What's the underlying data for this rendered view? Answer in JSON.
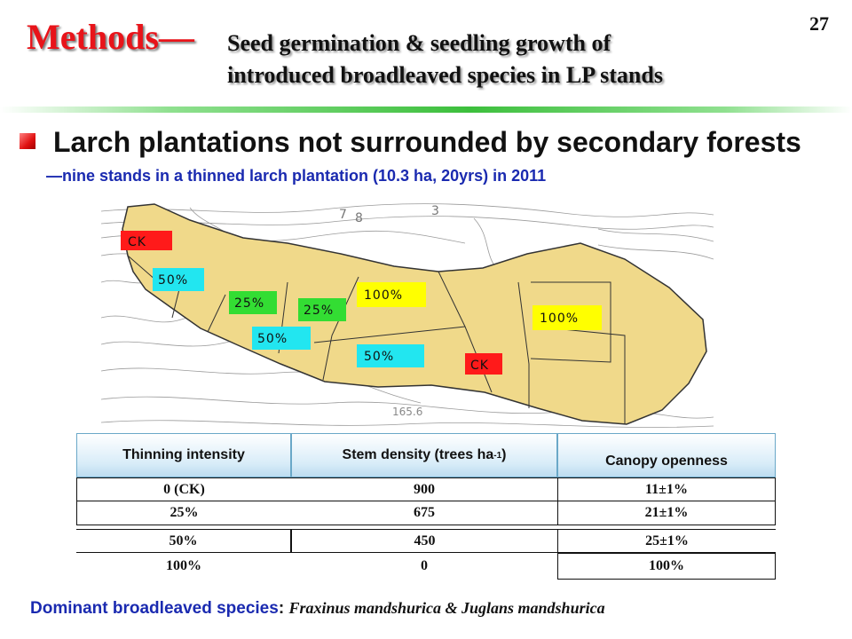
{
  "slide": {
    "page_number": "27",
    "title": "Methods—",
    "subtitle_line1": "Seed germination & seedling growth of",
    "subtitle_line2": "introduced broadleaved species in LP stands",
    "heading": "Larch plantations not surrounded by secondary forests",
    "subheading": "—nine stands in a thinned larch plantation (10.3 ha, 20yrs) in 2011"
  },
  "map": {
    "contour_labels": [
      "7",
      "8",
      "3",
      "165.6"
    ],
    "stands": [
      {
        "label": "CK",
        "color": "#ff1a1a"
      },
      {
        "label": "50%",
        "color": "#22e6f0"
      },
      {
        "label": "25%",
        "color": "#33dd33"
      },
      {
        "label": "25%",
        "color": "#33dd33"
      },
      {
        "label": "100%",
        "color": "#ffff00"
      },
      {
        "label": "100%",
        "color": "#ffff00"
      },
      {
        "label": "50%",
        "color": "#22e6f0"
      },
      {
        "label": "50%",
        "color": "#22e6f0"
      },
      {
        "label": "CK",
        "color": "#ff1a1a"
      }
    ],
    "fill_color": "#f0d98a"
  },
  "table": {
    "headers": {
      "intensity": "Thinning intensity",
      "density_pre": "Stem density (trees ha",
      "density_sup": "-1",
      "density_post": ")",
      "openness": "Canopy openness"
    },
    "rows": [
      {
        "intensity": "0 (CK)",
        "density": "900",
        "openness": "11±1%"
      },
      {
        "intensity": "25%",
        "density": "675",
        "openness": "21±1%"
      },
      {
        "intensity": "50%",
        "density": "450",
        "openness": "25±1%"
      },
      {
        "intensity": "100%",
        "density": "0",
        "openness": "100%"
      }
    ]
  },
  "footer": {
    "label": "Dominant broadleaved species",
    "colon": ":",
    "species": "Fraxinus mandshurica & Juglans mandshurica"
  }
}
